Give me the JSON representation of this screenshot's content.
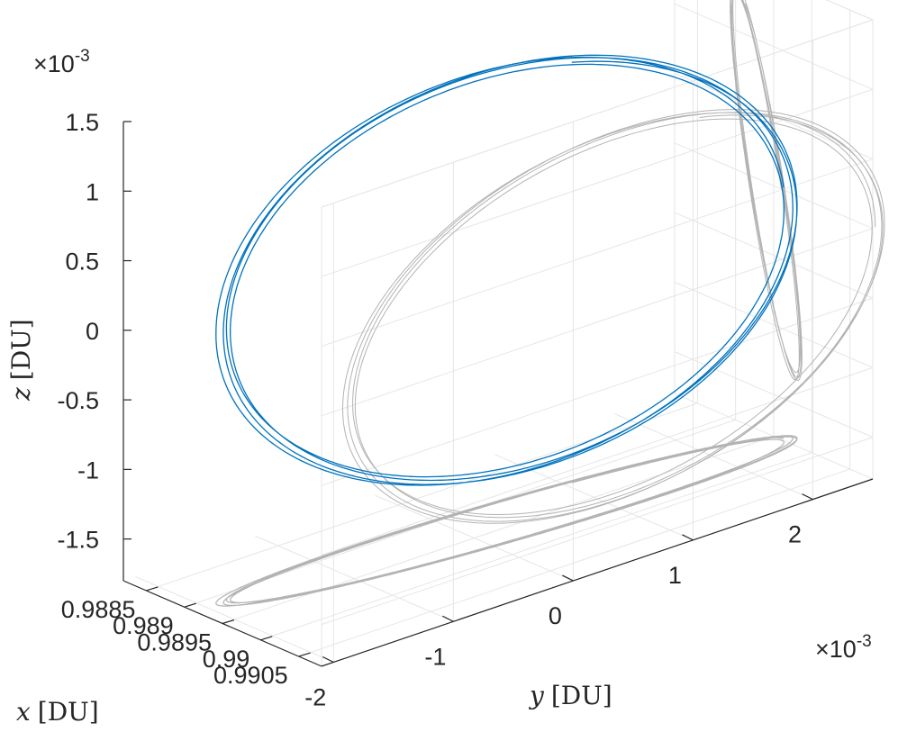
{
  "chart_data": {
    "type": "line3d",
    "title": "",
    "xlabel_var": "x",
    "xlabel_unit": "[DU]",
    "ylabel_var": "y",
    "ylabel_unit": "[DU]",
    "zlabel_var": "z",
    "zlabel_unit": "[DU]",
    "x_ticks": [
      "0.9885",
      "0.989",
      "0.9895",
      "0.99",
      "0.9905"
    ],
    "y_ticks": [
      "-2",
      "-1",
      "0",
      "1",
      "2"
    ],
    "z_ticks": [
      "1.5",
      "1",
      "0.5",
      "0",
      "-0.5",
      "-1",
      "-1.5"
    ],
    "y_exponent_base": "×10",
    "y_exponent_power": "-3",
    "z_exponent_base": "×10",
    "z_exponent_power": "-3",
    "xlim": [
      0.9882,
      0.9908
    ],
    "ylim": [
      -0.0021,
      0.0025
    ],
    "zlim": [
      -0.0018,
      0.0015
    ],
    "grid": true,
    "series": [
      {
        "color": "#0072BD",
        "projection_color": "#b3b3b3",
        "center": [
          0.9894,
          0.00035,
          0.0
        ],
        "amplitude_x": 0.00045,
        "amplitude_y": 0.0022,
        "amplitude_z": 0.0013,
        "phase_xz_deg": 60,
        "revolutions": 4.2,
        "drift": [
          5e-05,
          6e-05,
          -1e-05
        ]
      }
    ]
  }
}
